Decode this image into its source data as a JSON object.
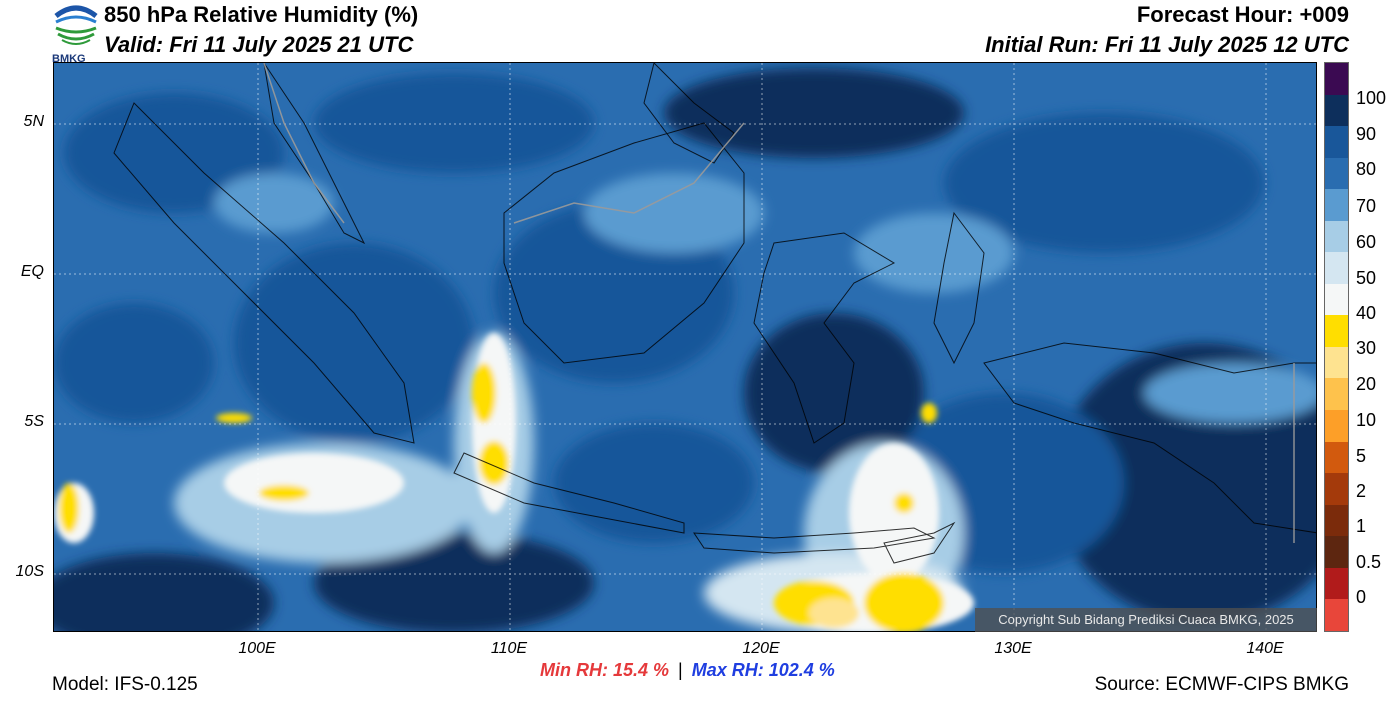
{
  "header": {
    "title": "850 hPa Relative Humidity (%)",
    "valid": "Valid: Fri 11 July 2025 21 UTC",
    "forecast_hour": "Forecast Hour: +009",
    "initial_run": "Initial Run: Fri 11 July 2025 12 UTC"
  },
  "logo": {
    "text": "BMKG"
  },
  "map": {
    "lat_labels": [
      "5N",
      "EQ",
      "5S",
      "10S"
    ],
    "lon_labels": [
      "100E",
      "110E",
      "120E",
      "130E",
      "140E"
    ],
    "copyright": "Copyright Sub Bidang Prediksi Cuaca BMKG, 2025"
  },
  "colorbar": {
    "labels": [
      "100",
      "90",
      "80",
      "70",
      "60",
      "50",
      "40",
      "30",
      "20",
      "10",
      "5",
      "2",
      "1",
      "0.5",
      "0"
    ],
    "colors": [
      "#3b0a52",
      "#0d2f5c",
      "#19579a",
      "#2a6db0",
      "#5a9bd0",
      "#a7cde6",
      "#d4e6f1",
      "#f5f7f7",
      "#ffde00",
      "#fee390",
      "#fec24c",
      "#fd9f28",
      "#d25a0e",
      "#a43a0b",
      "#7b2b0b",
      "#5d2610",
      "#b11b1b",
      "#e8463a"
    ]
  },
  "footer": {
    "model": "Model: IFS-0.125",
    "source": "Source: ECMWF-CIPS BMKG",
    "min_rh": "Min RH:  15.4 %",
    "separator": "|",
    "max_rh": "Max RH: 102.4 %"
  }
}
